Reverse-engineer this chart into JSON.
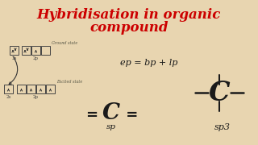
{
  "bg_color": "#e8d5b0",
  "title_line1": "Hybridisation in organic",
  "title_line2": "compound",
  "title_color": "#cc0000",
  "title_fontsize": 12,
  "title_style": "italic",
  "title_weight": "bold",
  "body_color": "#1a1a1a",
  "formula_ep": "ep = bp + lp",
  "sp_label": "sp",
  "sp3_label": "sp3"
}
